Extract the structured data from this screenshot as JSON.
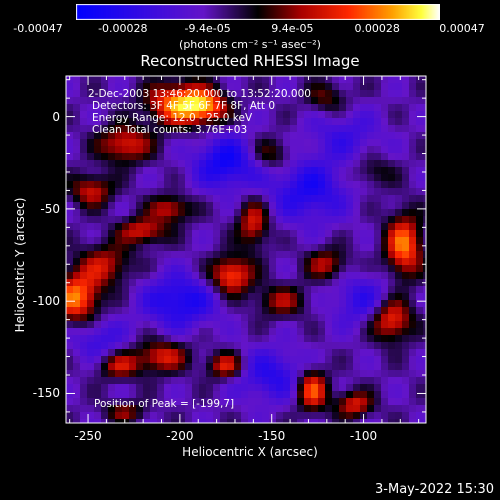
{
  "chart_data": {
    "type": "heatmap",
    "title": "Reconstructed RHESSI Image",
    "xlabel": "Heliocentric X (arcsec)",
    "ylabel": "Heliocentric Y (arcsec)",
    "xlim": [
      -262,
      -66
    ],
    "ylim": [
      -166,
      22
    ],
    "x_ticks": [
      -250,
      -200,
      -150,
      -100
    ],
    "y_ticks": [
      0,
      -50,
      -100,
      -150
    ],
    "colorbar": {
      "units": "(photons cm⁻² s⁻¹ asec⁻²)",
      "min": -0.00047,
      "max": 0.00047,
      "ticks": [
        "-0.00047",
        "-0.00028",
        "-9.4e-05",
        "9.4e-05",
        "0.00028",
        "0.00047"
      ]
    },
    "annotations": [
      "2-Dec-2003 13:46:20.000 to 13:52:20.000",
      "Detectors: 3F 4F 5F 6F 7F 8F, Att 0",
      "Energy Range: 12.0 - 25.0 keV",
      "Clean     Total counts: 3.76E+03"
    ],
    "peak_label": "Position of Peak = [-199,7]",
    "peak": {
      "x": -199,
      "y": 7
    },
    "sources": [
      {
        "x": -200,
        "y": 7,
        "amp": 0.00047,
        "sx": 12,
        "sy": 8
      },
      {
        "x": -256,
        "y": -98,
        "amp": 0.00042,
        "sx": 9,
        "sy": 10
      },
      {
        "x": -240,
        "y": -80,
        "amp": 0.00025,
        "sx": 10,
        "sy": 8
      },
      {
        "x": -248,
        "y": -40,
        "amp": 0.00028,
        "sx": 8,
        "sy": 6
      },
      {
        "x": -230,
        "y": -15,
        "amp": 0.00032,
        "sx": 10,
        "sy": 7
      },
      {
        "x": -220,
        "y": -62,
        "amp": 0.0003,
        "sx": 9,
        "sy": 5
      },
      {
        "x": -205,
        "y": -50,
        "amp": 0.00028,
        "sx": 8,
        "sy": 5
      },
      {
        "x": -172,
        "y": -86,
        "amp": 0.0004,
        "sx": 8,
        "sy": 7
      },
      {
        "x": -160,
        "y": -58,
        "amp": 0.0003,
        "sx": 6,
        "sy": 9
      },
      {
        "x": -185,
        "y": 5,
        "amp": 0.0003,
        "sx": 8,
        "sy": 6
      },
      {
        "x": -145,
        "y": -100,
        "amp": 0.00022,
        "sx": 10,
        "sy": 6
      },
      {
        "x": -120,
        "y": -80,
        "amp": 0.00025,
        "sx": 8,
        "sy": 6
      },
      {
        "x": -128,
        "y": -148,
        "amp": 0.0004,
        "sx": 6,
        "sy": 8
      },
      {
        "x": -105,
        "y": -156,
        "amp": 0.0003,
        "sx": 7,
        "sy": 5
      },
      {
        "x": -78,
        "y": -70,
        "amp": 0.00042,
        "sx": 7,
        "sy": 12
      },
      {
        "x": -85,
        "y": -110,
        "amp": 0.00038,
        "sx": 8,
        "sy": 8
      },
      {
        "x": -175,
        "y": -135,
        "amp": 0.00032,
        "sx": 7,
        "sy": 5
      },
      {
        "x": -210,
        "y": -130,
        "amp": 0.0003,
        "sx": 10,
        "sy": 6
      },
      {
        "x": -233,
        "y": -135,
        "amp": 0.00026,
        "sx": 8,
        "sy": 5
      },
      {
        "x": -150,
        "y": -20,
        "amp": 0.0002,
        "sx": 8,
        "sy": 6
      },
      {
        "x": -120,
        "y": 10,
        "amp": 0.00018,
        "sx": 8,
        "sy": 6
      },
      {
        "x": -95,
        "y": -30,
        "amp": 0.00015,
        "sx": 8,
        "sy": 6
      },
      {
        "x": -230,
        "y": -160,
        "amp": 0.0002,
        "sx": 8,
        "sy": 4
      },
      {
        "x": -175,
        "y": -25,
        "amp": -0.0003,
        "sx": 12,
        "sy": 10
      },
      {
        "x": -130,
        "y": -40,
        "amp": -0.00025,
        "sx": 15,
        "sy": 12
      },
      {
        "x": -200,
        "y": -100,
        "amp": -0.00028,
        "sx": 14,
        "sy": 10
      },
      {
        "x": -150,
        "y": -140,
        "amp": -0.00022,
        "sx": 14,
        "sy": 10
      },
      {
        "x": -100,
        "y": -100,
        "amp": -0.0002,
        "sx": 12,
        "sy": 10
      },
      {
        "x": -245,
        "y": -120,
        "amp": -0.00018,
        "sx": 10,
        "sy": 8
      },
      {
        "x": -110,
        "y": -10,
        "amp": -0.00015,
        "sx": 14,
        "sy": 10
      }
    ]
  },
  "footer": {
    "datestamp": "3-May-2022 15:30"
  }
}
